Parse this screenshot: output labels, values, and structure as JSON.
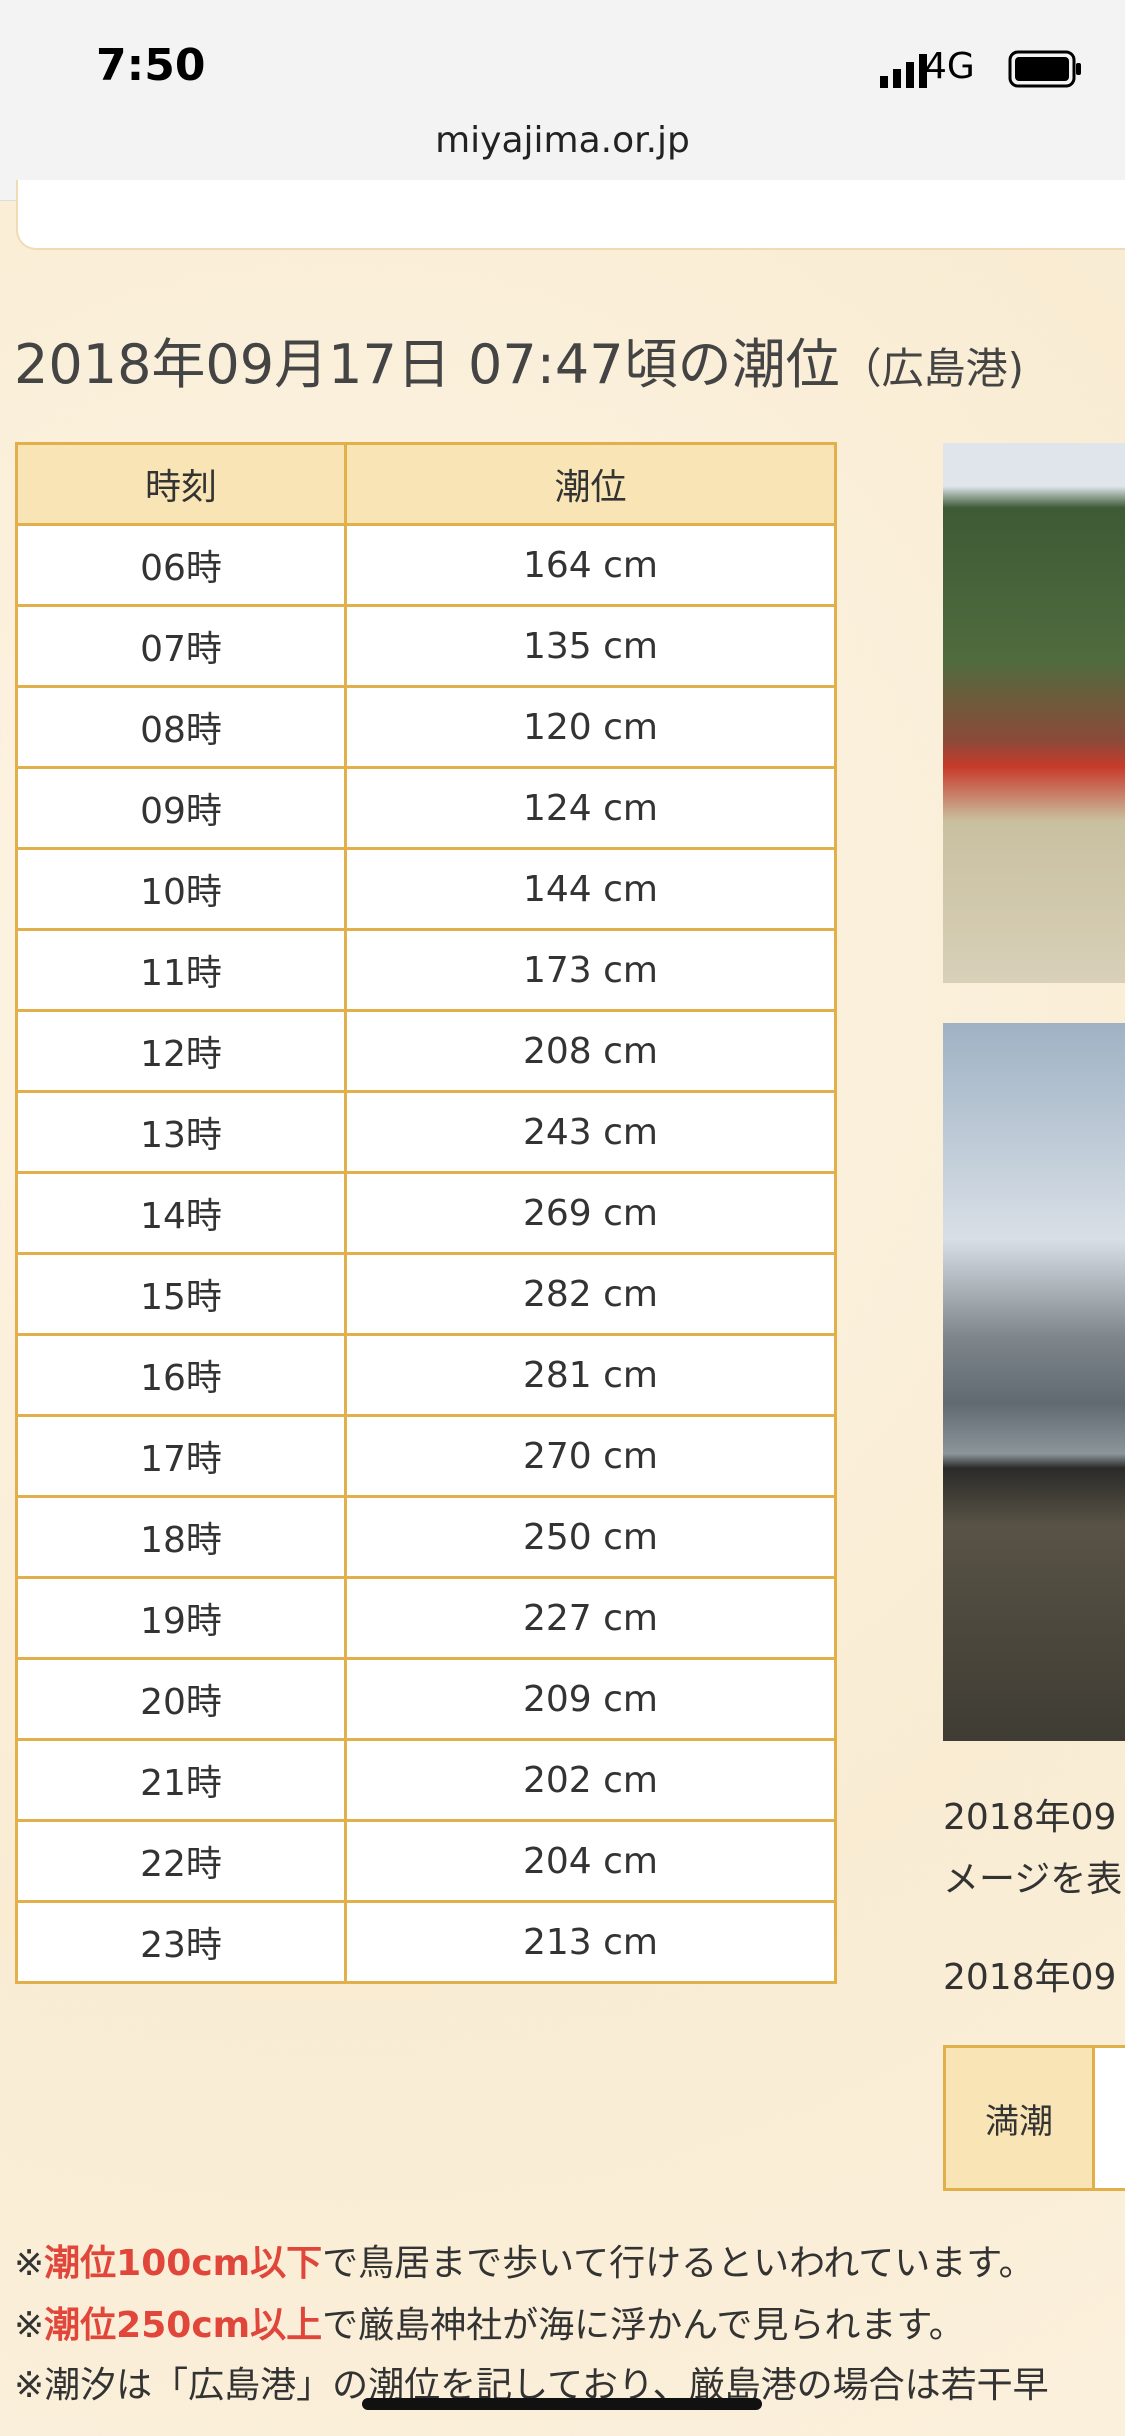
{
  "status_bar": {
    "time": "7:50",
    "network": "4G"
  },
  "browser": {
    "url": "miyajima.or.jp"
  },
  "heading": {
    "title": "2018年09月17日 07:47頃の潮位",
    "place": "（広島港)"
  },
  "table": {
    "headers": [
      "時刻",
      "潮位"
    ],
    "rows": [
      [
        "06時",
        "164 cm"
      ],
      [
        "07時",
        "135 cm"
      ],
      [
        "08時",
        "120 cm"
      ],
      [
        "09時",
        "124 cm"
      ],
      [
        "10時",
        "144 cm"
      ],
      [
        "11時",
        "173 cm"
      ],
      [
        "12時",
        "208 cm"
      ],
      [
        "13時",
        "243 cm"
      ],
      [
        "14時",
        "269 cm"
      ],
      [
        "15時",
        "282 cm"
      ],
      [
        "16時",
        "281 cm"
      ],
      [
        "17時",
        "270 cm"
      ],
      [
        "18時",
        "250 cm"
      ],
      [
        "19時",
        "227 cm"
      ],
      [
        "20時",
        "209 cm"
      ],
      [
        "21時",
        "202 cm"
      ],
      [
        "22時",
        "204 cm"
      ],
      [
        "23時",
        "213 cm"
      ]
    ]
  },
  "side": {
    "lines": [
      "2018年09",
      "メージを表",
      "2018年09"
    ],
    "tide_label": "満潮"
  },
  "notes": [
    {
      "mark": "※",
      "highlight": "潮位100cm以下",
      "text": "で鳥居まで歩いて行けるといわれています。"
    },
    {
      "mark": "※",
      "highlight": "潮位250cm以上",
      "text": "で厳島神社が海に浮かんで見られます。"
    },
    {
      "mark": "※",
      "highlight": "",
      "text": "潮汐は「広島港」の潮位を記しており、厳島港の場合は若干早"
    }
  ]
}
